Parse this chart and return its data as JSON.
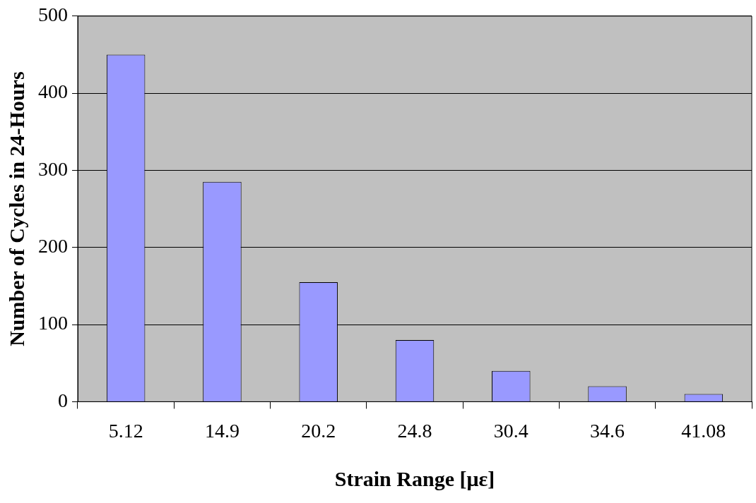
{
  "chart_data": {
    "type": "bar",
    "xlabel": "Strain Range [με]",
    "ylabel": "Number of Cycles in 24-Hours",
    "categories": [
      "5.12",
      "14.9",
      "20.2",
      "24.8",
      "30.4",
      "34.6",
      "41.08"
    ],
    "values": [
      450,
      285,
      155,
      80,
      40,
      20,
      10
    ],
    "color": "#9999ff",
    "ylim": [
      0,
      500
    ],
    "yticks": [
      0,
      100,
      200,
      300,
      400,
      500
    ],
    "grid": "y"
  }
}
